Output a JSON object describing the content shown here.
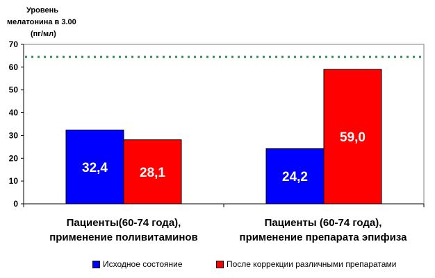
{
  "chart_data": {
    "type": "bar",
    "ylabel_lines": [
      "Уровень",
      "мелатонина в 3.00",
      "(пг/мл)"
    ],
    "ylim": [
      0,
      70
    ],
    "yticks": [
      "0",
      "10",
      "20",
      "30",
      "40",
      "50",
      "60",
      "70"
    ],
    "categories": [
      [
        "Пациенты(60-74 года),",
        "применение поливитаминов"
      ],
      [
        "Пациенты (60-74 года),",
        "применение препарата эпифиза"
      ]
    ],
    "series": [
      {
        "name": "Исходное состояние",
        "color": "#0000ff",
        "values": [
          32.4,
          24.2
        ],
        "labels": [
          "32,4",
          "24,2"
        ]
      },
      {
        "name": "После коррекции различными препаратами",
        "color": "#ff0000",
        "values": [
          28.1,
          59.0
        ],
        "labels": [
          "28,1",
          "59,0"
        ]
      }
    ],
    "reference_line": {
      "value": 64.5,
      "color": "#2e8b57",
      "style": "dotted"
    },
    "grid": false,
    "legend_position": "bottom"
  }
}
